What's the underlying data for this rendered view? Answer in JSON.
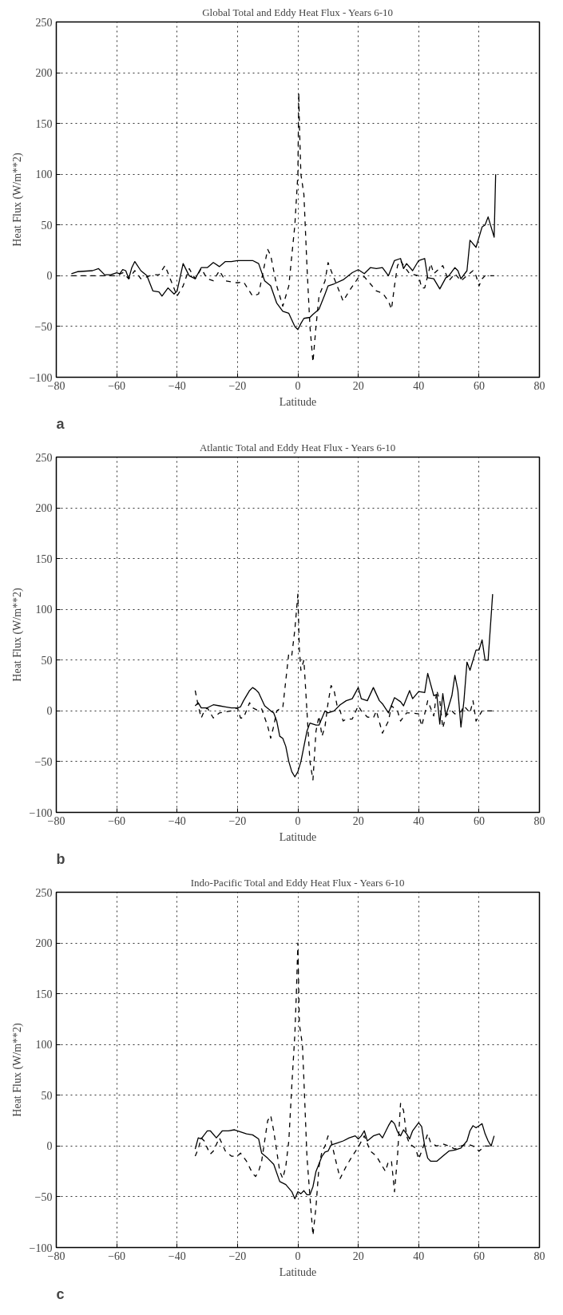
{
  "chart_data": [
    {
      "type": "line",
      "title": "Global Total and Eddy Heat Flux - Years 6-10",
      "xlabel": "Latitude",
      "ylabel": "Heat Flux (W/m**2)",
      "annotations": [
        "a"
      ],
      "xlim": [
        -80,
        80
      ],
      "ylim": [
        -100,
        250
      ],
      "xticks": [
        -80,
        -60,
        -40,
        -20,
        0,
        20,
        40,
        60,
        80
      ],
      "yticks": [
        -100,
        -50,
        0,
        50,
        100,
        150,
        200,
        250
      ],
      "grid": true,
      "series": [
        {
          "color": "#000000",
          "line_style": "solid",
          "x": [
            -75,
            -73,
            -68,
            -66,
            -64,
            -62,
            -60,
            -59,
            -58,
            -57,
            -56,
            -55,
            -54,
            -52,
            -50,
            -48,
            -46,
            -45,
            -43,
            -41,
            -40,
            -38,
            -36,
            -34,
            -32,
            -30,
            -28,
            -26,
            -24,
            -22,
            -20,
            -15,
            -13,
            -11,
            -9,
            -7,
            -5,
            -3,
            -1,
            0,
            1,
            2,
            4,
            5,
            7,
            9,
            10,
            12,
            15,
            18,
            20,
            22,
            24,
            26,
            28,
            30,
            32,
            34,
            35,
            36,
            38,
            40,
            41,
            42,
            43,
            45,
            47,
            49,
            50,
            52,
            53,
            54,
            56,
            57,
            59,
            61,
            62,
            63,
            64,
            65,
            65.5
          ],
          "values": [
            2,
            4,
            5,
            7,
            1,
            1,
            3,
            2,
            6,
            5,
            -3,
            8,
            14,
            5,
            0,
            -15,
            -16,
            -20,
            -12,
            -18,
            -15,
            12,
            0,
            -3,
            8,
            8,
            13,
            9,
            14,
            14,
            15,
            15,
            12,
            -5,
            -10,
            -27,
            -35,
            -37,
            -50,
            -53,
            -47,
            -42,
            -41,
            -38,
            -33,
            -18,
            -10,
            -8,
            -4,
            3,
            6,
            2,
            8,
            7,
            8,
            0,
            15,
            17,
            7,
            12,
            5,
            15,
            16,
            17,
            -2,
            -3,
            -13,
            -2,
            0,
            8,
            5,
            -3,
            5,
            35,
            28,
            48,
            50,
            58,
            48,
            38,
            100
          ]
        },
        {
          "color": "#000000",
          "line_style": "dashed",
          "x": [
            -75,
            -60,
            -58,
            -56,
            -54,
            -52,
            -48,
            -46,
            -44,
            -42,
            -40,
            -38,
            -36,
            -34,
            -32,
            -30,
            -28,
            -26,
            -24,
            -20,
            -18,
            -15,
            -13,
            -10,
            -9,
            -7,
            -5,
            -3,
            -1,
            0,
            0.3,
            0.5,
            1,
            2,
            3,
            4,
            5,
            6,
            7,
            9,
            10,
            11,
            13,
            15,
            17,
            20,
            22,
            24,
            26,
            28,
            30,
            31,
            32,
            33,
            34,
            35,
            37,
            40,
            41,
            42,
            43,
            44,
            45,
            48,
            49,
            50,
            52,
            54,
            56,
            58,
            59,
            60,
            61,
            62,
            65
          ],
          "values": [
            0,
            0,
            3,
            -3,
            5,
            -3,
            1,
            1,
            10,
            -5,
            -20,
            -10,
            7,
            -3,
            7,
            -3,
            -5,
            5,
            -5,
            -7,
            -6,
            -20,
            -18,
            26,
            20,
            -10,
            -30,
            -10,
            50,
            100,
            180,
            150,
            100,
            80,
            10,
            -50,
            -85,
            -50,
            -20,
            -5,
            13,
            5,
            -10,
            -25,
            -15,
            -2,
            -1,
            -8,
            -15,
            -17,
            -25,
            -33,
            -10,
            10,
            15,
            10,
            2,
            0,
            -12,
            -12,
            0,
            12,
            2,
            10,
            2,
            -5,
            2,
            -5,
            0,
            5,
            0,
            -10,
            -3,
            0,
            0
          ]
        }
      ]
    },
    {
      "type": "line",
      "title": "Atlantic Total and Eddy Heat Flux - Years 6-10",
      "xlabel": "Latitude",
      "ylabel": "Heat Flux (W/m**2)",
      "annotations": [
        "b"
      ],
      "xlim": [
        -80,
        80
      ],
      "ylim": [
        -100,
        250
      ],
      "xticks": [
        -80,
        -60,
        -40,
        -20,
        0,
        20,
        40,
        60,
        80
      ],
      "yticks": [
        -100,
        -50,
        0,
        50,
        100,
        150,
        200,
        250
      ],
      "grid": true,
      "series": [
        {
          "color": "#000000",
          "line_style": "solid",
          "x": [
            -34,
            -33,
            -32,
            -30,
            -28,
            -26,
            -24,
            -22,
            -20,
            -19,
            -18,
            -16,
            -15,
            -14,
            -13,
            -11,
            -9,
            -8,
            -7,
            -6,
            -5,
            -4,
            -3,
            -2,
            -1,
            0,
            1,
            2,
            3,
            4,
            6,
            7,
            9,
            10,
            12,
            14,
            16,
            18,
            20,
            21,
            23,
            25,
            27,
            28,
            30,
            32,
            34,
            35,
            37,
            38,
            40,
            42,
            43,
            45,
            46,
            47,
            48,
            49,
            50,
            51,
            52,
            53,
            54,
            55,
            56,
            57,
            59,
            60,
            61,
            62,
            63,
            64.5
          ],
          "values": [
            5,
            8,
            3,
            3,
            6,
            5,
            4,
            3,
            3,
            4,
            10,
            20,
            23,
            21,
            18,
            5,
            0,
            -2,
            -10,
            -25,
            -27,
            -35,
            -50,
            -60,
            -65,
            -60,
            -50,
            -35,
            -20,
            -12,
            -14,
            -14,
            0,
            -2,
            0,
            6,
            10,
            12,
            23,
            12,
            10,
            23,
            10,
            7,
            -2,
            13,
            9,
            5,
            20,
            12,
            19,
            18,
            37,
            15,
            16,
            -13,
            17,
            -5,
            5,
            15,
            35,
            20,
            -16,
            10,
            48,
            40,
            60,
            60,
            70,
            50,
            50,
            115
          ]
        },
        {
          "color": "#000000",
          "line_style": "dashed",
          "x": [
            -34,
            -33,
            -32,
            -31,
            -30,
            -29,
            -28,
            -26,
            -22,
            -20,
            -19,
            -18,
            -16,
            -15,
            -13,
            -12,
            -10,
            -9,
            -8,
            -7,
            -6,
            -5,
            -4,
            -3,
            -2,
            -1,
            0,
            0.5,
            1,
            2,
            3,
            4,
            5,
            6,
            7,
            8,
            9,
            10,
            11,
            12,
            13,
            14,
            15,
            16,
            18,
            20,
            21,
            23,
            25,
            26,
            28,
            30,
            31,
            33,
            34,
            36,
            38,
            40,
            41,
            42,
            43,
            45,
            46,
            47,
            48,
            49,
            50,
            51,
            52,
            54,
            55,
            57,
            58,
            59,
            60,
            61,
            62,
            65
          ],
          "values": [
            20,
            5,
            -7,
            0,
            3,
            -2,
            -7,
            -2,
            0,
            3,
            -7,
            -7,
            8,
            3,
            0,
            2,
            -15,
            -27,
            -15,
            0,
            2,
            3,
            30,
            57,
            55,
            80,
            115,
            60,
            40,
            50,
            0,
            -50,
            -68,
            -20,
            -5,
            -25,
            -15,
            8,
            25,
            20,
            5,
            0,
            -10,
            -8,
            -8,
            5,
            0,
            -6,
            -7,
            0,
            -22,
            -10,
            5,
            0,
            -10,
            -2,
            -2,
            -3,
            -15,
            -3,
            10,
            -5,
            20,
            10,
            -17,
            -5,
            -2,
            0,
            -3,
            -1,
            5,
            -2,
            10,
            -10,
            -5,
            0,
            0,
            0
          ]
        }
      ]
    },
    {
      "type": "line",
      "title": "Indo-Pacific Total and Eddy Heat Flux - Years 6-10",
      "xlabel": "Latitude",
      "ylabel": "Heat Flux (W/m**2)",
      "annotations": [
        "c"
      ],
      "xlim": [
        -80,
        80
      ],
      "ylim": [
        -100,
        250
      ],
      "xticks": [
        -80,
        -60,
        -40,
        -20,
        0,
        20,
        40,
        60,
        80
      ],
      "yticks": [
        -100,
        -50,
        0,
        50,
        100,
        150,
        200,
        250
      ],
      "grid": true,
      "series": [
        {
          "color": "#000000",
          "line_style": "solid",
          "x": [
            -34,
            -33,
            -32,
            -30,
            -29,
            -27,
            -25,
            -23,
            -21,
            -19,
            -17,
            -15,
            -13,
            -12,
            -10,
            -8,
            -6,
            -4,
            -2,
            -1,
            0,
            1,
            2,
            3,
            4,
            5,
            6,
            8,
            9,
            10,
            11,
            13,
            15,
            17,
            19,
            20,
            21,
            22,
            23,
            25,
            27,
            28,
            30,
            31,
            32,
            33,
            34,
            35,
            36,
            37,
            38,
            40,
            41,
            42,
            43,
            44,
            46,
            48,
            50,
            52,
            54,
            56,
            57,
            58,
            59,
            60,
            61,
            62,
            63,
            64,
            65
          ],
          "values": [
            -3,
            8,
            7,
            15,
            15,
            8,
            15,
            15,
            16,
            14,
            12,
            11,
            7,
            -7,
            -12,
            -18,
            -35,
            -38,
            -45,
            -52,
            -45,
            -47,
            -44,
            -48,
            -48,
            -40,
            -25,
            -10,
            -6,
            -5,
            1,
            3,
            5,
            8,
            10,
            7,
            10,
            15,
            5,
            10,
            12,
            8,
            20,
            25,
            22,
            14,
            10,
            16,
            12,
            7,
            15,
            23,
            19,
            0,
            -12,
            -15,
            -15,
            -10,
            -5,
            -4,
            -2,
            5,
            15,
            20,
            18,
            20,
            22,
            12,
            5,
            0,
            10
          ]
        },
        {
          "color": "#000000",
          "line_style": "dashed",
          "x": [
            -34,
            -33,
            -32,
            -31,
            -30,
            -29,
            -28,
            -26,
            -24,
            -22,
            -20,
            -19,
            -17,
            -15,
            -14,
            -13,
            -12,
            -10,
            -9,
            -8,
            -7,
            -6,
            -5,
            -4,
            -3,
            -2,
            -1,
            -0.5,
            0,
            0.5,
            1,
            1.5,
            2,
            3,
            4,
            5,
            6,
            7,
            8,
            9,
            10,
            11,
            13,
            14,
            16,
            18,
            20,
            22,
            24,
            26,
            28,
            29,
            30,
            31,
            32,
            33,
            34,
            35,
            36,
            37,
            39,
            40,
            41,
            43,
            44,
            46,
            48,
            50,
            52,
            54,
            56,
            58,
            60,
            62,
            65
          ],
          "values": [
            -10,
            -3,
            8,
            5,
            -2,
            -8,
            -5,
            8,
            -5,
            -10,
            -10,
            -7,
            -15,
            -27,
            -30,
            -25,
            -15,
            25,
            30,
            15,
            -5,
            -25,
            -32,
            -20,
            5,
            60,
            110,
            150,
            200,
            120,
            110,
            100,
            65,
            -10,
            -50,
            -88,
            -60,
            -20,
            -5,
            0,
            10,
            5,
            -20,
            -32,
            -20,
            -10,
            -1,
            10,
            -5,
            -10,
            -20,
            -25,
            -15,
            -15,
            -45,
            -10,
            42,
            35,
            10,
            2,
            -2,
            -13,
            -5,
            12,
            3,
            0,
            2,
            0,
            -3,
            0,
            2,
            0,
            -5,
            0,
            0
          ]
        }
      ]
    }
  ]
}
